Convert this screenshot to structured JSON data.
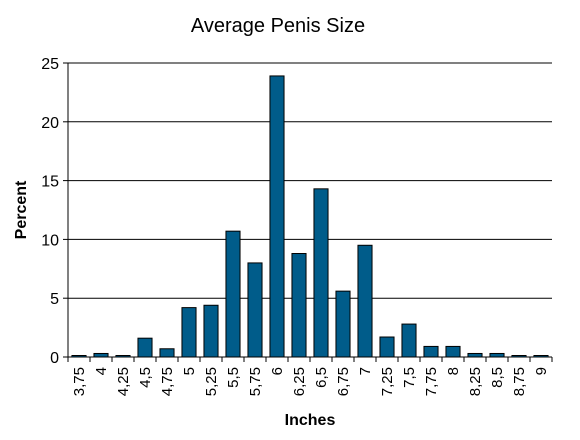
{
  "chart_data": {
    "type": "bar",
    "title": "Average Penis Size",
    "xlabel": "Inches",
    "ylabel": "Percent",
    "ylim": [
      0,
      25
    ],
    "yticks": [
      "0",
      "5",
      "10",
      "15",
      "20",
      "25"
    ],
    "grid": true,
    "categories": [
      "3,75",
      "4",
      "4,25",
      "4,5",
      "4,75",
      "5",
      "5,25",
      "5,5",
      "5,75",
      "6",
      "6,25",
      "6,5",
      "6,75",
      "7",
      "7,25",
      "7,5",
      "7,75",
      "8",
      "8,25",
      "8,5",
      "8,75",
      "9"
    ],
    "values": [
      0.1,
      0.3,
      0.1,
      1.6,
      0.7,
      4.2,
      4.4,
      10.7,
      8.0,
      23.9,
      8.8,
      14.3,
      5.6,
      9.5,
      1.7,
      2.8,
      0.9,
      0.9,
      0.3,
      0.3,
      0.05,
      0.05
    ],
    "colors": {
      "bar": "#005c8a",
      "bar_stroke": "#000000",
      "grid": "#000000"
    }
  }
}
